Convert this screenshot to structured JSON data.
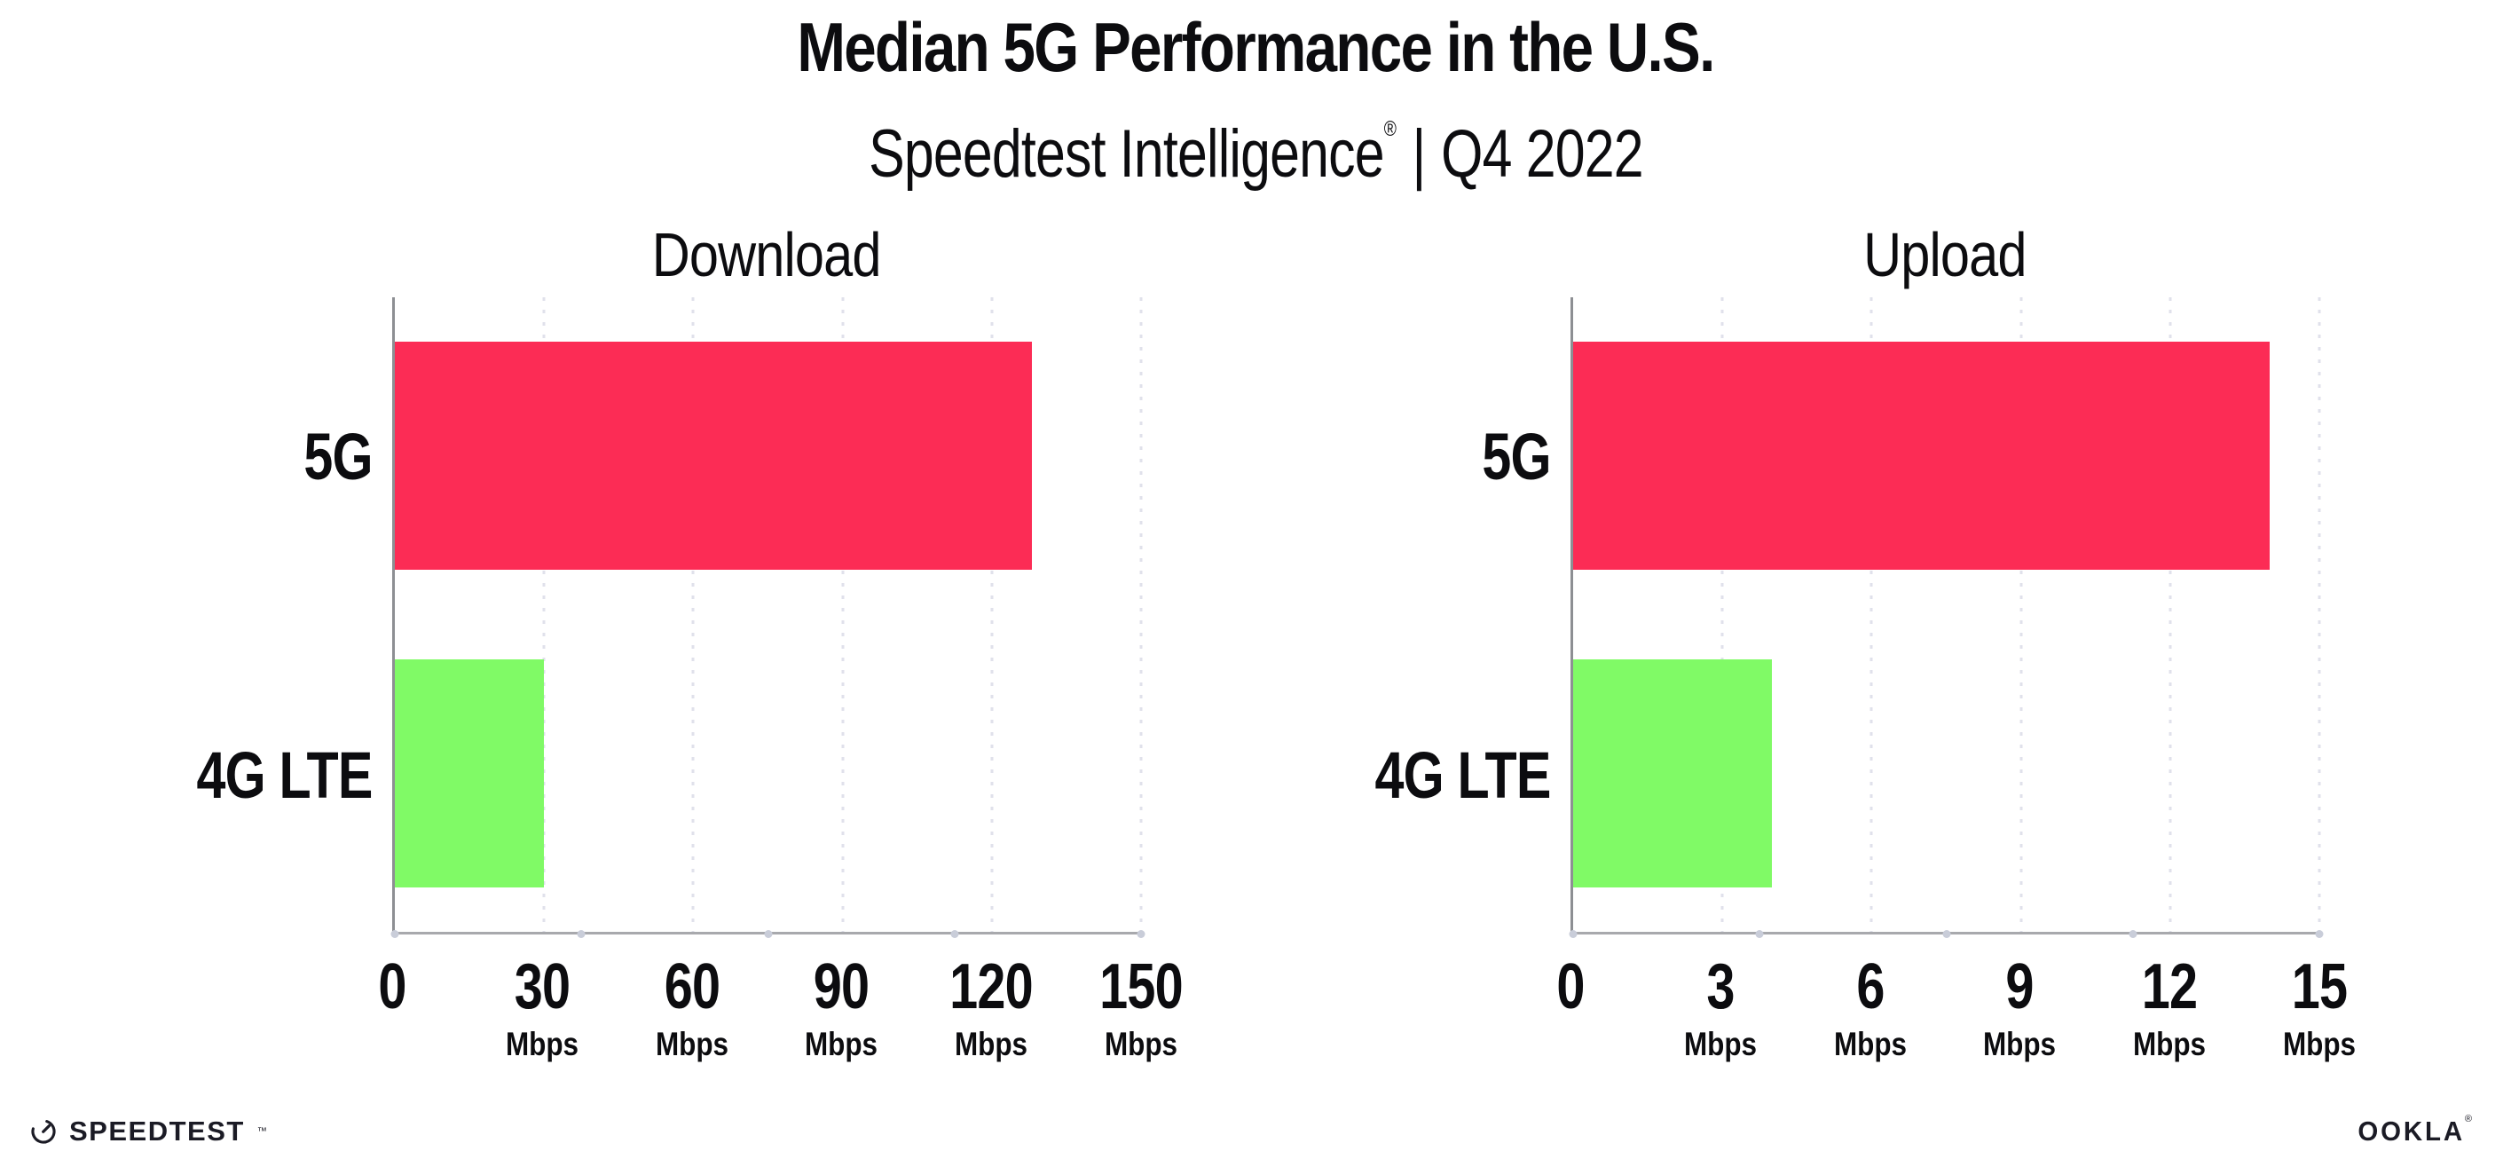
{
  "page": {
    "title": "Median 5G Performance in the U.S.",
    "subtitle": {
      "brand": "Speedtest Intelligence",
      "registered": "®",
      "separator": "|",
      "period": "Q4 2022"
    }
  },
  "colors": {
    "bar_5g": "#fc2c55",
    "bar_4g_lte": "#80fa66",
    "x_axis": "#a8a9ad",
    "y_axis": "#8d8f93",
    "gridline_dot": "#e0e1eb",
    "axis_marker_dot": "#c9cdd9",
    "text": "#0c0c0f",
    "logo": "#1b1b25"
  },
  "chart_data": [
    {
      "type": "bar",
      "orientation": "horizontal",
      "title": "Download",
      "unit": "Mbps",
      "categories": [
        "5G",
        "4G LTE"
      ],
      "values": [
        128,
        30
      ],
      "xlim": [
        0,
        150
      ],
      "ticks": [
        0,
        30,
        60,
        90,
        120,
        150
      ],
      "bar_colors": [
        "#fc2c55",
        "#80fa66"
      ],
      "grid": "dotted-vertical",
      "legend": "none"
    },
    {
      "type": "bar",
      "orientation": "horizontal",
      "title": "Upload",
      "unit": "Mbps",
      "categories": [
        "5G",
        "4G LTE"
      ],
      "values": [
        14,
        4
      ],
      "xlim": [
        0,
        15
      ],
      "ticks": [
        0,
        3,
        6,
        9,
        12,
        15
      ],
      "bar_colors": [
        "#fc2c55",
        "#80fa66"
      ],
      "grid": "dotted-vertical",
      "legend": "none"
    }
  ],
  "footer": {
    "speedtest_wordmark": "SPEEDTEST",
    "speedtest_trademark": "™",
    "speedtest_icon": "speedtest-gauge-icon",
    "ookla_wordmark": "OOKLA",
    "ookla_registered": "®"
  }
}
